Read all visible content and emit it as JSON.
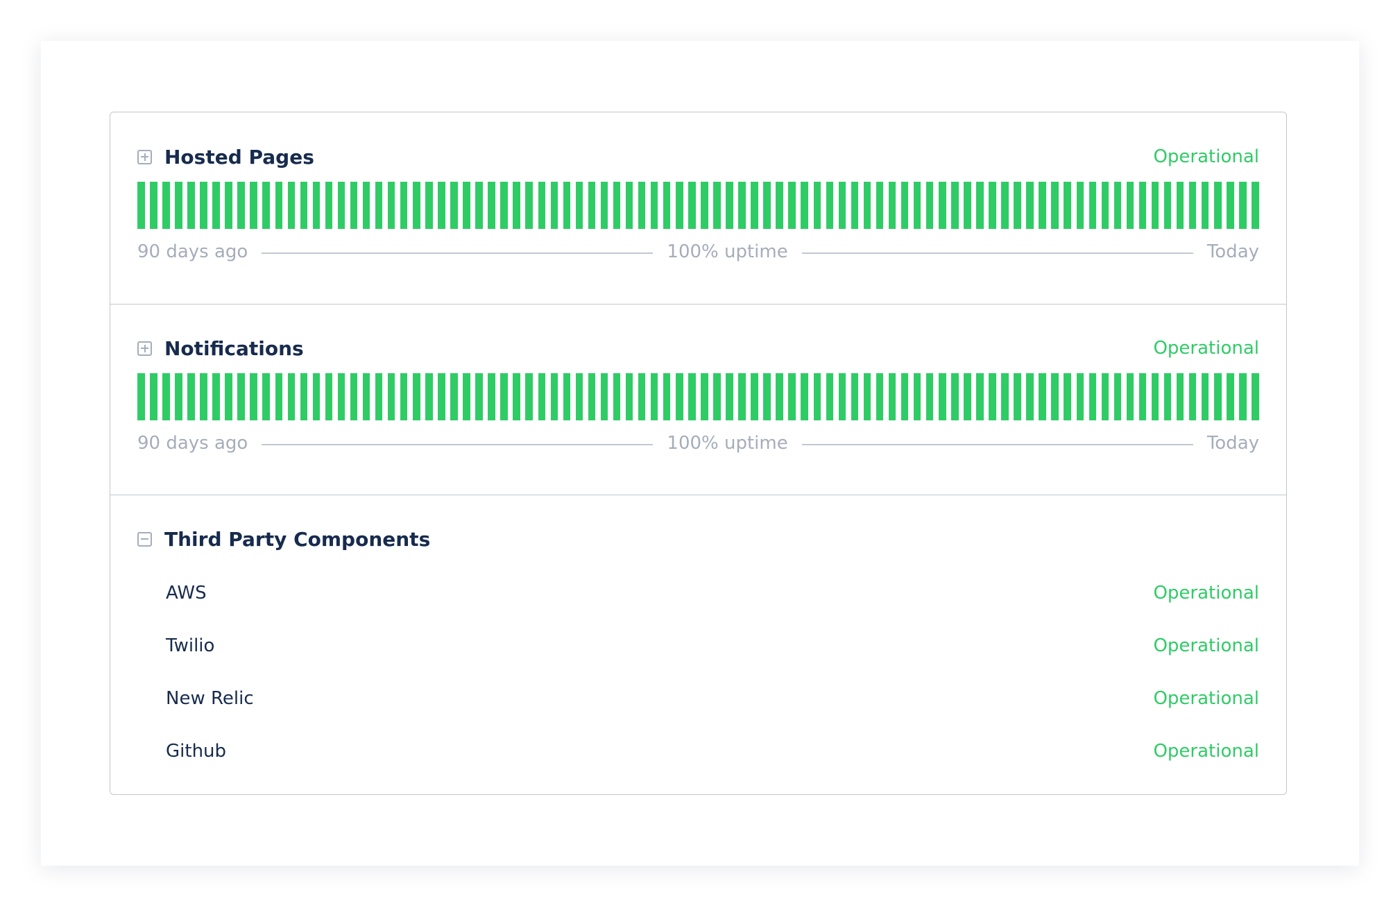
{
  "colors": {
    "operational": "#2fcc66",
    "text": "#172b4d",
    "muted": "#a5adba",
    "border": "#c1c7d0"
  },
  "groups": [
    {
      "title": "Hosted Pages",
      "toggle_icon": "plus-square-icon",
      "status": "Operational",
      "uptime": {
        "days_shown": 90,
        "bar_status": "operational",
        "start_label": "90 days ago",
        "uptime_label": "100% uptime",
        "end_label": "Today"
      }
    },
    {
      "title": "Notifications",
      "toggle_icon": "plus-square-icon",
      "status": "Operational",
      "uptime": {
        "days_shown": 90,
        "bar_status": "operational",
        "start_label": "90 days ago",
        "uptime_label": "100% uptime",
        "end_label": "Today"
      }
    },
    {
      "title": "Third Party Components",
      "toggle_icon": "minus-square-icon",
      "components": [
        {
          "name": "AWS",
          "status": "Operational"
        },
        {
          "name": "Twilio",
          "status": "Operational"
        },
        {
          "name": "New Relic",
          "status": "Operational"
        },
        {
          "name": "Github",
          "status": "Operational"
        }
      ]
    }
  ]
}
